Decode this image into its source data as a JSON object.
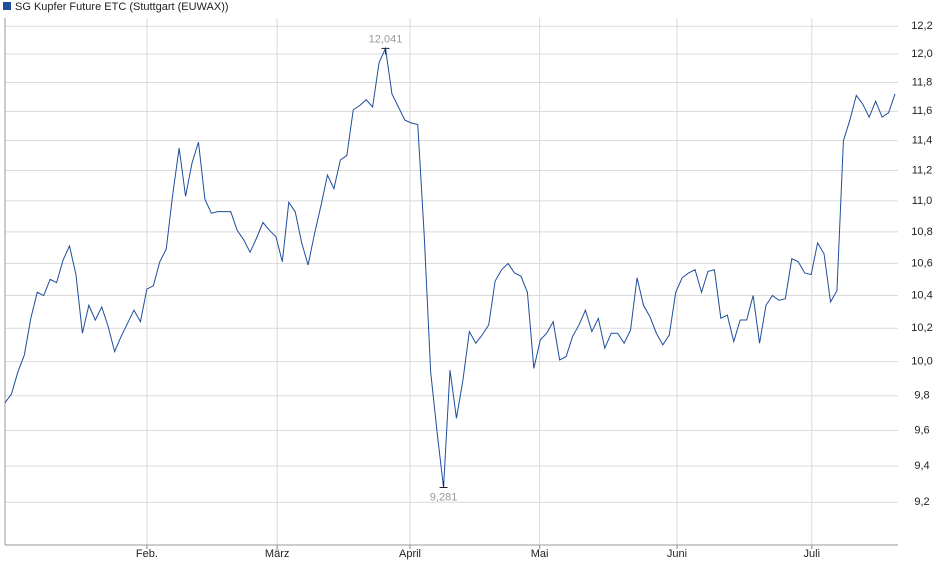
{
  "chart_data": {
    "type": "line",
    "series": [
      {
        "name": "SG Kupfer Future ETC (Stuttgart (EUWAX))",
        "color": "#1f4e9c",
        "values": [
          9.76,
          9.81,
          9.94,
          10.04,
          10.26,
          10.42,
          10.4,
          10.5,
          10.48,
          10.62,
          10.71,
          10.53,
          10.17,
          10.34,
          10.25,
          10.33,
          10.21,
          10.06,
          10.15,
          10.23,
          10.31,
          10.24,
          10.44,
          10.46,
          10.61,
          10.69,
          11.04,
          11.35,
          11.03,
          11.25,
          11.39,
          11.01,
          10.92,
          10.93,
          10.93,
          10.93,
          10.81,
          10.75,
          10.67,
          10.76,
          10.86,
          10.81,
          10.77,
          10.61,
          10.99,
          10.93,
          10.73,
          10.59,
          10.79,
          10.97,
          11.17,
          11.08,
          11.27,
          11.3,
          11.61,
          11.64,
          11.68,
          11.63,
          11.94,
          12.041,
          11.72,
          11.63,
          11.54,
          11.52,
          11.51,
          10.78,
          9.94,
          9.59,
          9.281,
          9.95,
          9.67,
          9.89,
          10.18,
          10.11,
          10.16,
          10.22,
          10.49,
          10.56,
          10.6,
          10.54,
          10.52,
          10.42,
          9.96,
          10.13,
          10.17,
          10.24,
          10.01,
          10.03,
          10.15,
          10.22,
          10.31,
          10.18,
          10.26,
          10.08,
          10.17,
          10.17,
          10.11,
          10.19,
          10.51,
          10.34,
          10.27,
          10.17,
          10.1,
          10.16,
          10.42,
          10.51,
          10.54,
          10.56,
          10.42,
          10.55,
          10.56,
          10.26,
          10.28,
          10.12,
          10.25,
          10.25,
          10.4,
          10.11,
          10.34,
          10.4,
          10.37,
          10.38,
          10.63,
          10.61,
          10.54,
          10.53,
          10.73,
          10.66,
          10.36,
          10.43,
          11.4,
          11.54,
          11.71,
          11.65,
          11.56,
          11.67,
          11.56,
          11.59,
          11.72
        ],
        "value_labels": [
          null,
          null,
          null,
          null,
          null,
          null,
          null,
          null,
          null,
          null,
          null,
          null,
          null,
          null,
          null,
          null,
          null,
          null,
          null,
          null,
          null,
          null,
          null,
          null,
          null,
          null,
          null,
          null,
          null,
          null,
          null,
          null,
          null,
          null,
          null,
          null,
          null,
          null,
          null,
          null,
          null,
          null,
          null,
          null,
          null,
          null,
          null,
          null,
          null,
          null,
          null,
          null,
          null,
          null,
          null,
          null,
          null,
          null,
          null,
          "12,041",
          null,
          null,
          null,
          null,
          null,
          null,
          null,
          null,
          "9,281",
          null,
          null,
          null,
          null,
          null,
          null,
          null,
          null,
          null,
          null,
          null,
          null,
          null,
          null,
          null,
          null,
          null,
          null,
          null,
          null,
          null,
          null,
          null,
          null,
          null,
          null,
          null,
          null,
          null,
          null,
          null,
          null,
          null,
          null,
          null,
          null,
          null,
          null,
          null,
          null,
          null,
          null,
          null,
          null,
          null,
          null,
          null,
          null,
          null,
          null,
          null,
          null,
          null,
          null,
          null,
          null,
          null,
          null,
          null,
          null,
          null,
          null,
          null,
          null,
          null,
          null,
          null,
          null,
          null,
          null
        ]
      }
    ],
    "xlim": [
      0,
      138
    ],
    "xticks": [
      {
        "value": 22,
        "label": "Feb."
      },
      {
        "value": 42.2,
        "label": "März"
      },
      {
        "value": 62.8,
        "label": "April"
      },
      {
        "value": 82.9,
        "label": "Mai"
      },
      {
        "value": 104.2,
        "label": "Juni"
      },
      {
        "value": 125.1,
        "label": "Juli"
      }
    ],
    "ylim": [
      8.97,
      12.26
    ],
    "log_scale": true,
    "grid": true,
    "yticks": [
      {
        "value": 9.2,
        "label": "9,2"
      },
      {
        "value": 9.4,
        "label": "9,4"
      },
      {
        "value": 9.6,
        "label": "9,6"
      },
      {
        "value": 9.8,
        "label": "9,8"
      },
      {
        "value": 10.0,
        "label": "10,0"
      },
      {
        "value": 10.2,
        "label": "10,2"
      },
      {
        "value": 10.4,
        "label": "10,4"
      },
      {
        "value": 10.6,
        "label": "10,6"
      },
      {
        "value": 10.8,
        "label": "10,8"
      },
      {
        "value": 11.0,
        "label": "11,0"
      },
      {
        "value": 11.2,
        "label": "11,2"
      },
      {
        "value": 11.4,
        "label": "11,4"
      },
      {
        "value": 11.6,
        "label": "11,6"
      },
      {
        "value": 11.8,
        "label": "11,8"
      },
      {
        "value": 12.0,
        "label": "12,0"
      },
      {
        "value": 12.2,
        "label": "12,2"
      }
    ]
  }
}
